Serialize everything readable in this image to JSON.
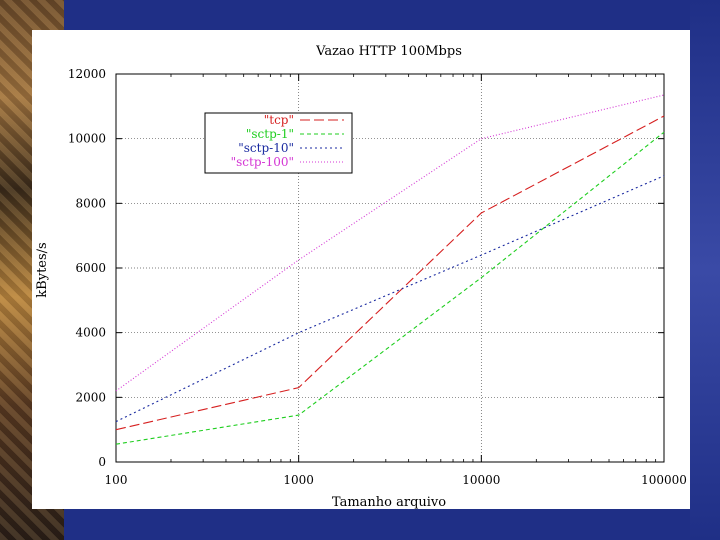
{
  "chart_data": {
    "type": "line",
    "title": "Vazao HTTP 100Mbps",
    "xlabel": "Tamanho arquivo",
    "ylabel": "kBytes/s",
    "xscale": "log",
    "xlim": [
      100,
      100000
    ],
    "ylim": [
      0,
      12000
    ],
    "xticks": [
      100,
      1000,
      10000,
      100000
    ],
    "xtick_labels": [
      "100",
      "1000",
      "10000",
      "100000"
    ],
    "yticks": [
      0,
      2000,
      4000,
      6000,
      8000,
      10000,
      12000
    ],
    "ytick_labels": [
      "0",
      "2000",
      "4000",
      "6000",
      "8000",
      "10000",
      "12000"
    ],
    "grid": true,
    "legend_position": "upper-left",
    "x": [
      100,
      1000,
      10000,
      100000
    ],
    "series": [
      {
        "name": "\"tcp\"",
        "color": "#d62020",
        "dash": "10,4",
        "values": [
          1000,
          2300,
          7700,
          10700
        ]
      },
      {
        "name": "\"sctp-1\"",
        "color": "#1fce1f",
        "dash": "4,3",
        "values": [
          550,
          1450,
          5700,
          10200
        ]
      },
      {
        "name": "\"sctp-10\"",
        "color": "#1a2aa0",
        "dash": "2,3",
        "values": [
          1250,
          4000,
          6400,
          8850
        ]
      },
      {
        "name": "\"sctp-100\"",
        "color": "#d436d4",
        "dash": "1,2",
        "values": [
          2200,
          6250,
          10000,
          11350
        ]
      }
    ]
  }
}
